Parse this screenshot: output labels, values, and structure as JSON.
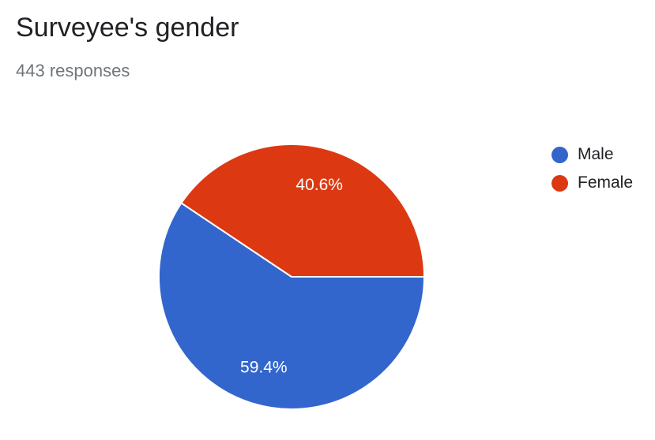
{
  "header": {
    "title": "Surveyee's gender",
    "subtitle": "443 responses"
  },
  "chart_data": {
    "type": "pie",
    "title": "Surveyee's gender",
    "categories": [
      "Male",
      "Female"
    ],
    "values": [
      59.4,
      40.6
    ],
    "labels": [
      "59.4%",
      "40.6%"
    ],
    "colors": [
      "#3366cc",
      "#dc3912"
    ],
    "legend_position": "right"
  }
}
